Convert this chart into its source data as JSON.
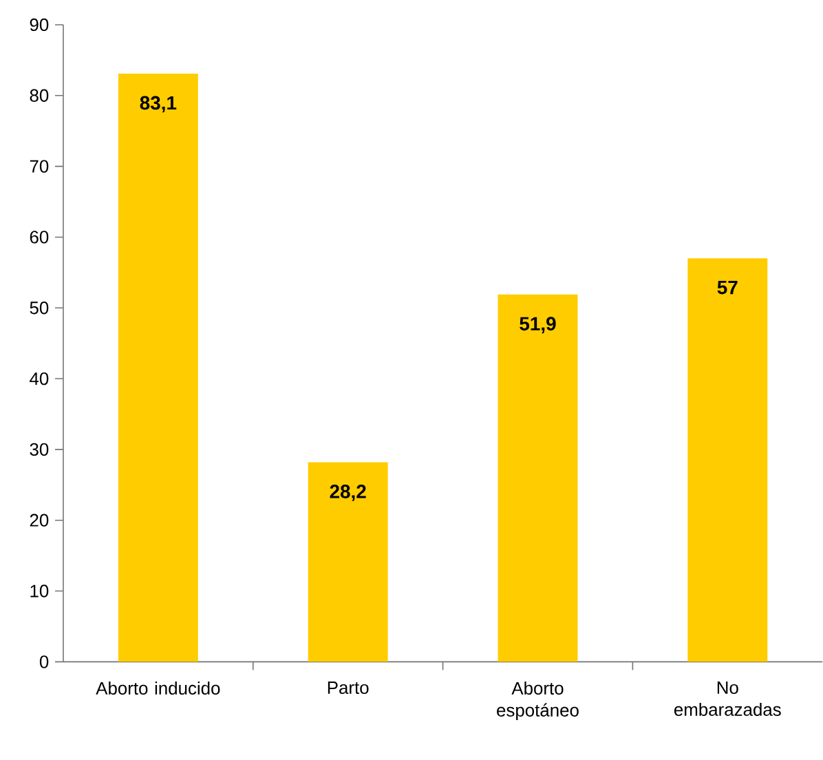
{
  "chart_data": {
    "type": "bar",
    "categories": [
      "Aborto inducido",
      "Parto",
      "Aborto espotáneo",
      "No embarazadas"
    ],
    "values": [
      83.1,
      28.2,
      51.9,
      57
    ],
    "value_labels": [
      "83,1",
      "28,2",
      "51,9",
      "57"
    ],
    "color": "#ffcc00",
    "ylim": [
      0,
      90
    ],
    "yticks": [
      0,
      10,
      20,
      30,
      40,
      50,
      60,
      70,
      80,
      90
    ],
    "grid": false
  }
}
